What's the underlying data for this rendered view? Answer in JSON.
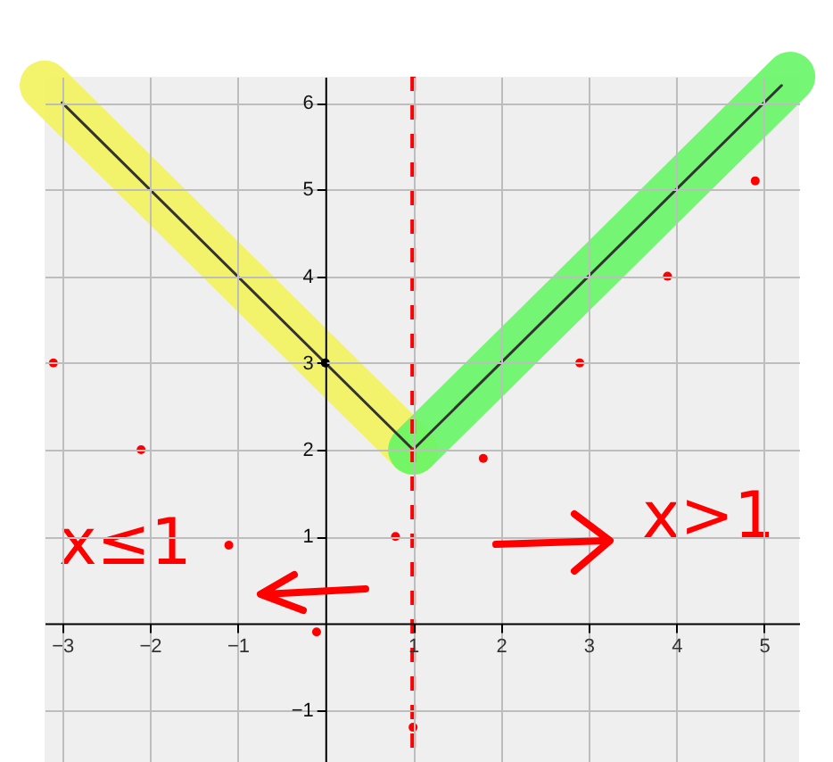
{
  "chart_data": {
    "type": "line",
    "xlim": [
      -3.2,
      5.4
    ],
    "ylim": [
      -1.6,
      6.3
    ],
    "xticks": [
      -3,
      -2,
      -1,
      1,
      2,
      3,
      4,
      5
    ],
    "yticks": [
      -1,
      1,
      2,
      3,
      4,
      5,
      6
    ],
    "grid": true,
    "series": [
      {
        "color": "#f3f35c",
        "x": [
          -3.2,
          1
        ],
        "values": [
          6.2,
          2
        ]
      },
      {
        "color": "#66f566",
        "x": [
          1,
          5.3
        ],
        "values": [
          2,
          6.3
        ]
      },
      {
        "color": "#333333",
        "x": [
          -3,
          1,
          5.2
        ],
        "values": [
          6,
          2,
          6.2
        ]
      },
      {
        "type": "scatter",
        "color": "#ff0000",
        "x": [
          -3.1,
          -2.1,
          -1.1,
          -0.1,
          0.8,
          1.0,
          1.8,
          2.9,
          3.9,
          4.9
        ],
        "values": [
          3.0,
          2.0,
          0.9,
          -0.1,
          1.0,
          -1.2,
          1.9,
          3.0,
          4.0,
          5.1
        ]
      },
      {
        "type": "scatter",
        "color": "#000000",
        "x": [
          0
        ],
        "values": [
          3
        ]
      }
    ],
    "ref_lines": [
      {
        "axis": "x",
        "value": 1,
        "color": "#ff0000",
        "line_style": "dashed"
      }
    ],
    "annotations": [
      "x≤1",
      "x>1"
    ]
  }
}
